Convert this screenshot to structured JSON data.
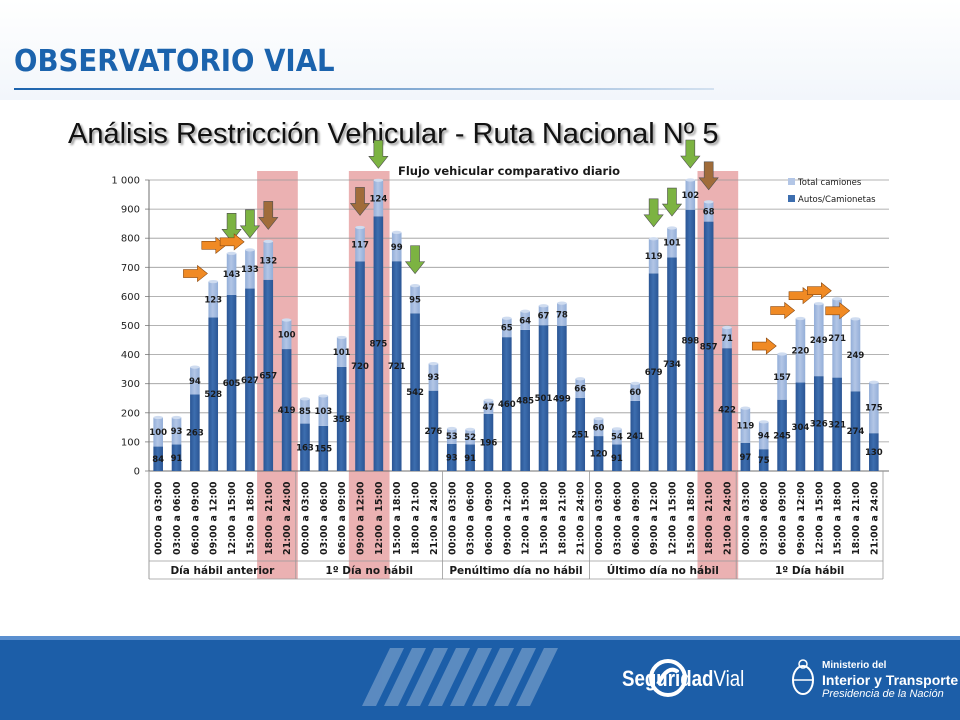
{
  "header": {
    "brand": "OBSERVATORIO VIAL"
  },
  "slide": {
    "title": "Análisis Restricción Vehicular - Ruta Nacional Nº 5"
  },
  "footer": {
    "logo_text_bold": "Seguridad",
    "logo_text_light": "Vial",
    "ministry_line1": "Ministerio del",
    "ministry_line2": "Interior y Transporte",
    "ministry_line3": "Presidencia de la Nación"
  },
  "colors": {
    "autos": "#3d6eaf",
    "camiones": "#b3c6e6",
    "restriction_band": "#e8a3a5",
    "arrow_green": "#7cb342",
    "arrow_brown": "#a06c3a",
    "arrow_orange": "#f08a24",
    "footer_blue": "#1c5ea8",
    "brand_blue": "#1b63ad"
  },
  "chart_data": {
    "type": "bar",
    "stacked": true,
    "title": "Flujo vehicular comparativo diario",
    "ylim": [
      0,
      1000
    ],
    "yticks": [
      "0",
      "100",
      "200",
      "300",
      "400",
      "500",
      "600",
      "700",
      "800",
      "900",
      "1 000"
    ],
    "grid": true,
    "legend": "top-right",
    "groups": [
      "Día hábil anterior",
      "1º Día no hábil",
      "Penúltimo día no hábil",
      "Último día no hábil",
      "1º Día hábil"
    ],
    "categories": [
      "00:00 a 03:00",
      "03:00 a 06:00",
      "06:00 a 09:00",
      "09:00 a 12:00",
      "12:00 a 15:00",
      "15:00 a 18:00",
      "18:00 a 21:00",
      "21:00 a 24:00",
      "00:00 a 03:00",
      "03:00 a 06:00",
      "06:00 a 09:00",
      "09:00 a 12:00",
      "12:00 a 15:00",
      "15:00 a 18:00",
      "18:00 a 21:00",
      "21:00 a 24:00",
      "00:00 a 03:00",
      "03:00 a 06:00",
      "06:00 a 09:00",
      "09:00 a 12:00",
      "12:00 a 15:00",
      "15:00 a 18:00",
      "18:00 a 21:00",
      "21:00 a 24:00",
      "00:00 a 03:00",
      "03:00 a 06:00",
      "06:00 a 09:00",
      "09:00 a 12:00",
      "12:00 a 15:00",
      "15:00 a 18:00",
      "18:00 a 21:00",
      "21:00 a 24:00",
      "00:00 a 03:00",
      "03:00 a 06:00",
      "06:00 a 09:00",
      "09:00 a 12:00",
      "12:00 a 15:00",
      "15:00 a 18:00",
      "18:00 a 21:00",
      "21:00 a 24:00"
    ],
    "highlighted_categories": [
      6,
      7,
      11,
      12,
      30,
      31
    ],
    "series": [
      {
        "name": "Autos/Camionetas",
        "values": [
          84,
          91,
          263,
          528,
          605,
          627,
          657,
          419,
          163,
          155,
          358,
          720,
          875,
          721,
          542,
          276,
          93,
          91,
          196,
          460,
          485,
          501,
          499,
          251,
          120,
          91,
          241,
          679,
          734,
          898,
          857,
          422,
          97,
          75,
          245,
          304,
          326,
          321,
          274,
          130
        ]
      },
      {
        "name": "Total camiones",
        "values": [
          100,
          93,
          94,
          123,
          143,
          133,
          132,
          100,
          85,
          103,
          101,
          117,
          124,
          99,
          95,
          93,
          53,
          52,
          47,
          65,
          64,
          67,
          78,
          66,
          60,
          54,
          60,
          119,
          101,
          102,
          68,
          71,
          119,
          94,
          157,
          220,
          249,
          271,
          249,
          175
        ]
      }
    ],
    "annotations": {
      "arrows_down_green": [
        4,
        5,
        12,
        14,
        27,
        28,
        29
      ],
      "arrows_down_brown": [
        6,
        11,
        30
      ],
      "arrows_right_orange": [
        3,
        4,
        5,
        34,
        35,
        36,
        37,
        38
      ]
    }
  }
}
